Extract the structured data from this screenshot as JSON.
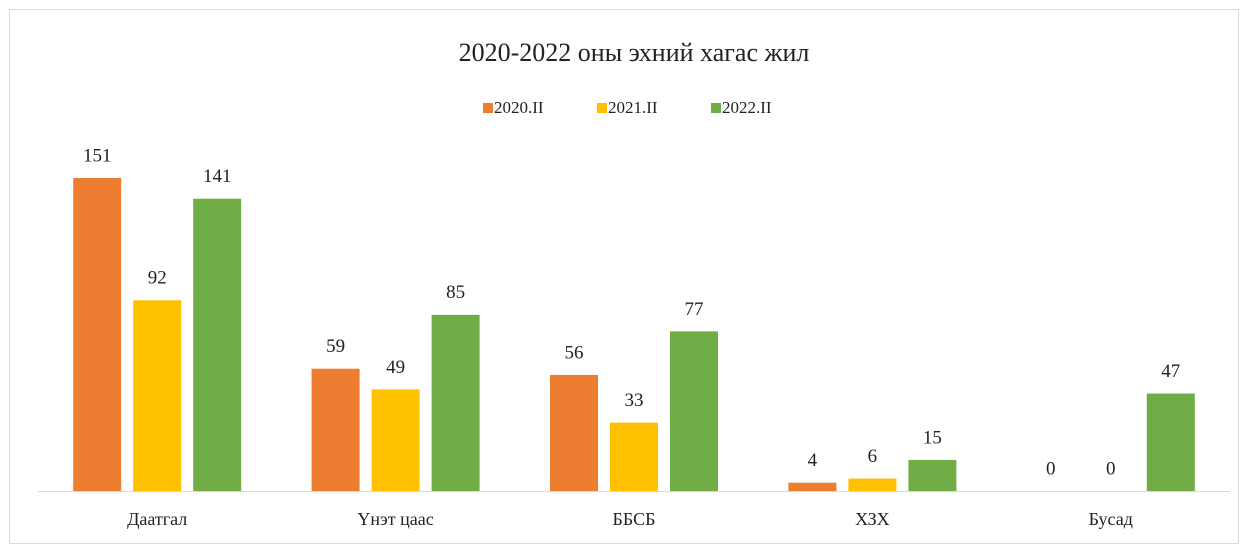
{
  "chart_data": {
    "type": "bar",
    "title": "2020-2022 оны эхний хагас жил",
    "categories": [
      "Даатгал",
      "Үнэт цаас",
      "ББСБ",
      "ХЗХ",
      "Бусад"
    ],
    "series": [
      {
        "name": "2020.II",
        "color": "#ED7D31",
        "values": [
          151,
          59,
          56,
          4,
          0
        ]
      },
      {
        "name": "2021.II",
        "color": "#FFC000",
        "values": [
          92,
          49,
          33,
          6,
          0
        ]
      },
      {
        "name": "2022.II",
        "color": "#70AD47",
        "values": [
          141,
          85,
          77,
          15,
          47
        ]
      }
    ],
    "legend": "top"
  }
}
